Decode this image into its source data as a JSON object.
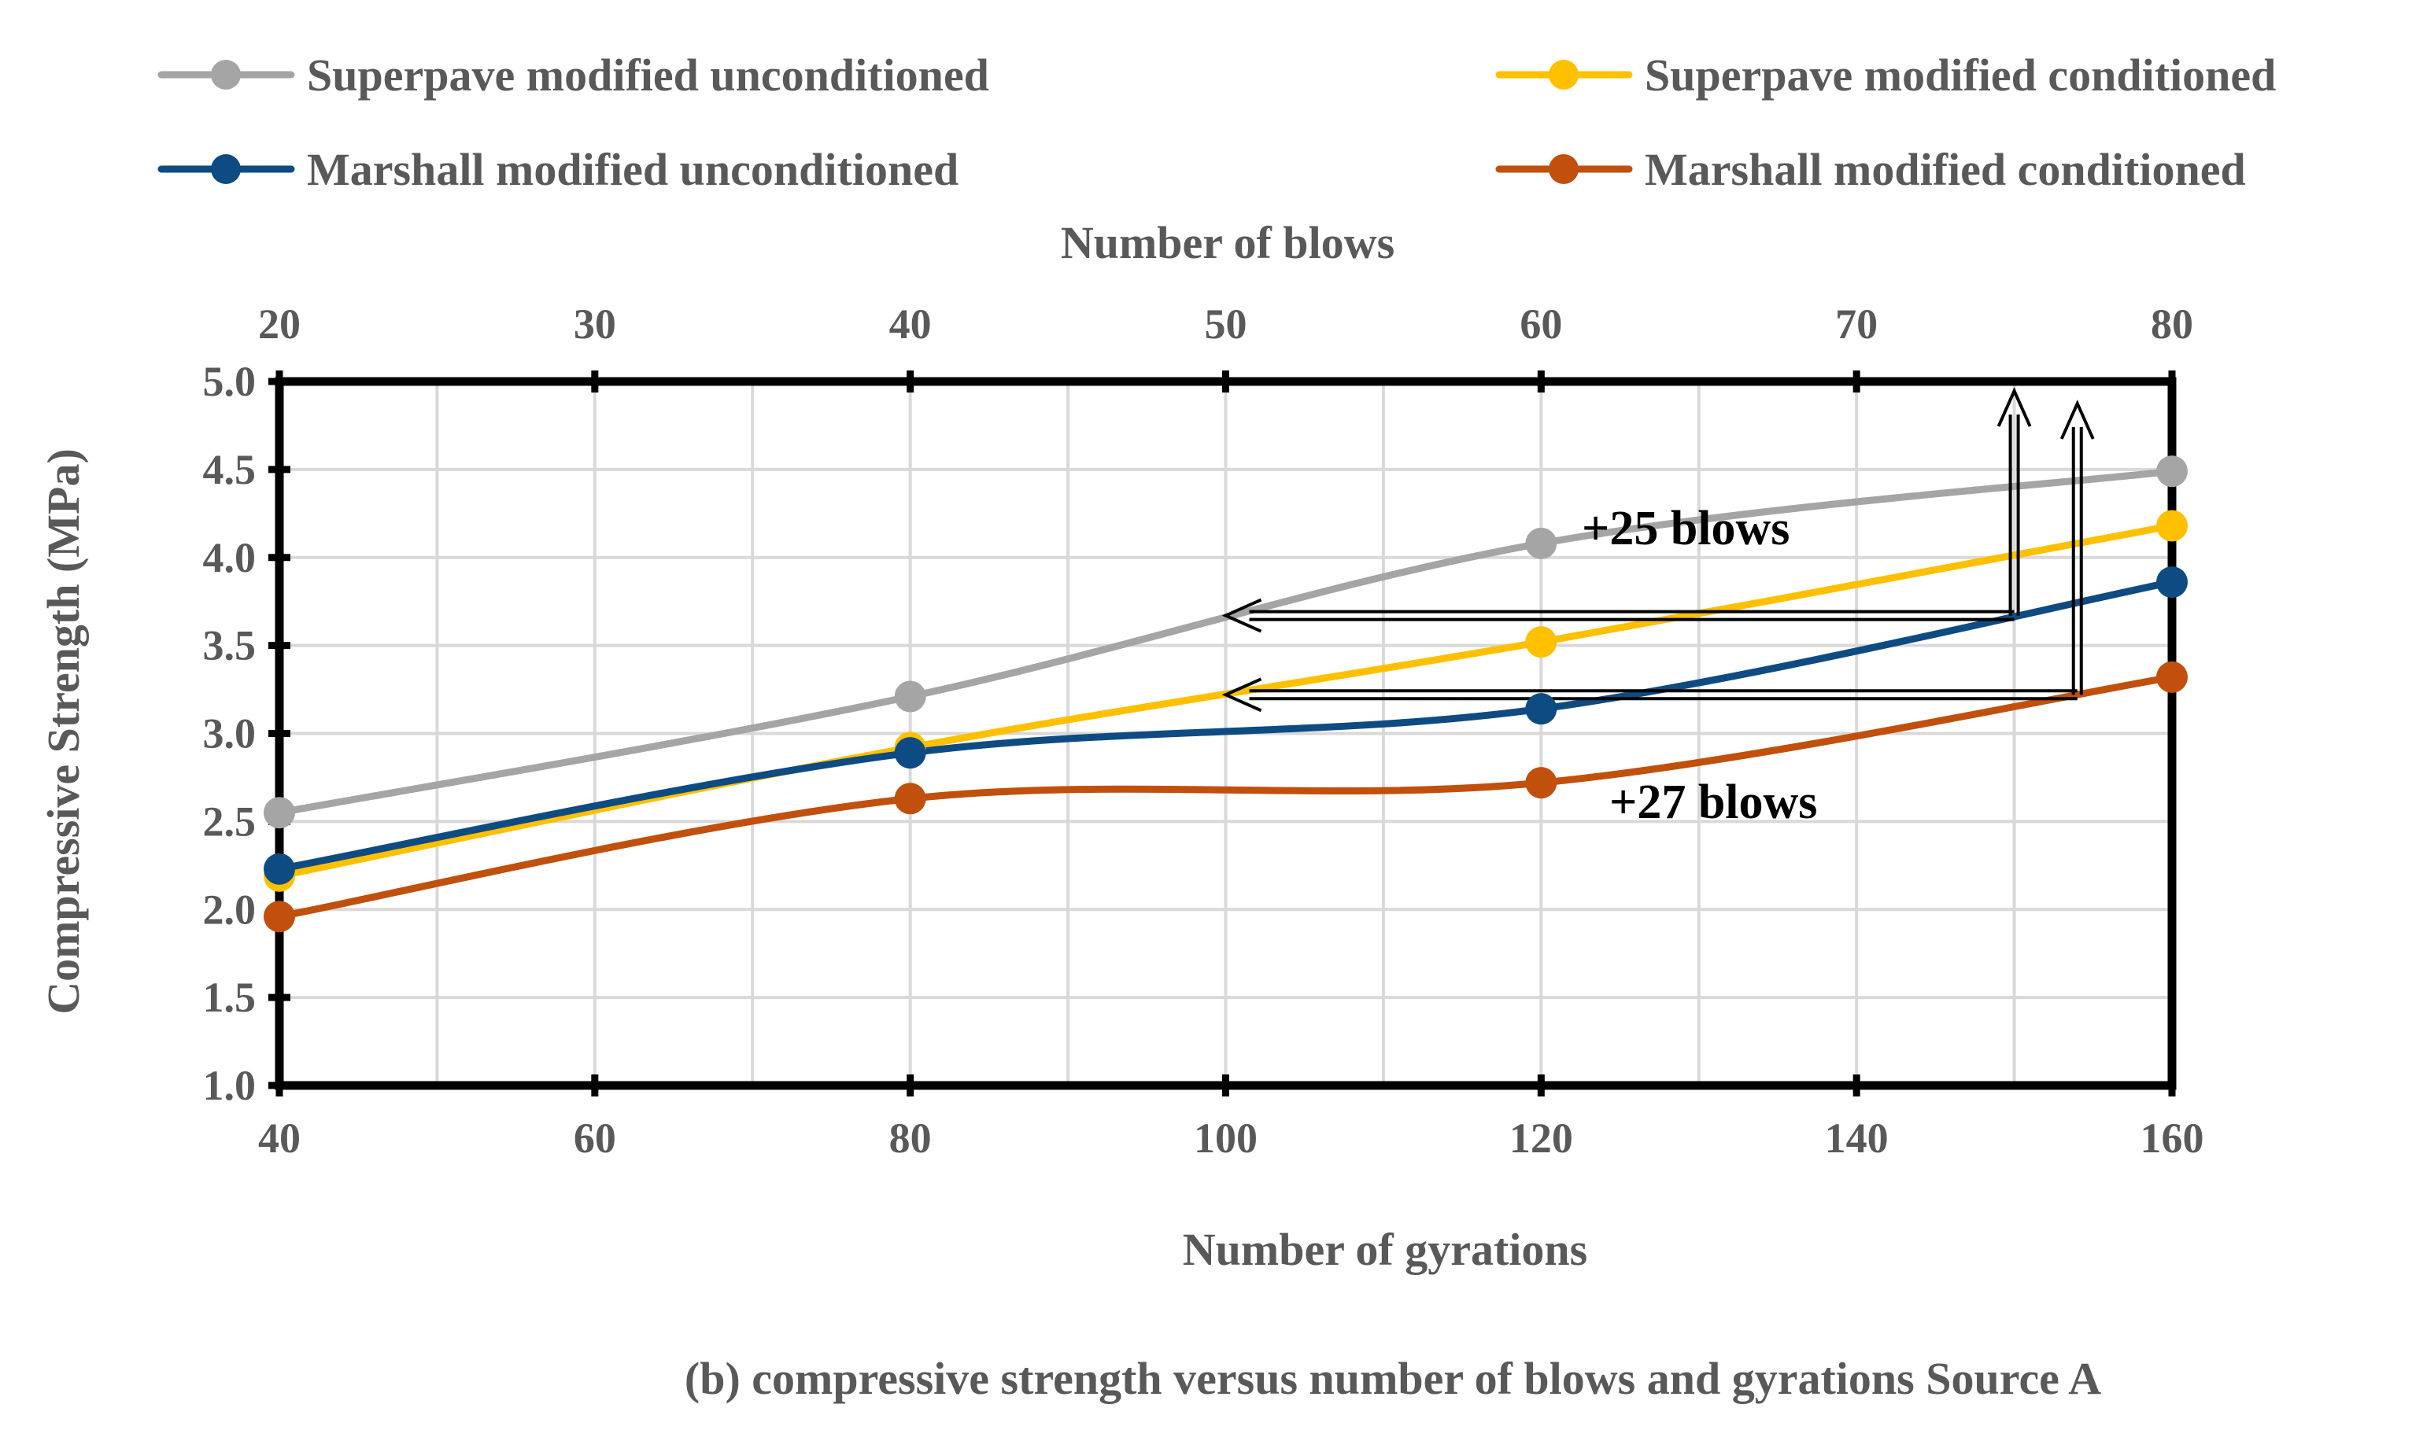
{
  "chart_data": {
    "type": "line",
    "title": "",
    "caption": "(b) compressive strength versus number of blows and gyrations Source A",
    "xlabel": "Number of gyrations",
    "x2label": "Number of blows",
    "ylabel": "Compressive Strength (MPa)",
    "xlim": [
      40,
      160
    ],
    "x2lim": [
      20,
      80
    ],
    "ylim": [
      1.0,
      5.0
    ],
    "xticks": [
      "40",
      "60",
      "80",
      "100",
      "120",
      "140",
      "160"
    ],
    "x2ticks": [
      "20",
      "30",
      "40",
      "50",
      "60",
      "70",
      "80"
    ],
    "yticks": [
      "1.0",
      "1.5",
      "2.0",
      "2.5",
      "3.0",
      "3.5",
      "4.0",
      "4.5",
      "5.0"
    ],
    "grid": true,
    "legend_position": "top",
    "series": [
      {
        "name": "Superpave modified unconditioned",
        "axis": "gyrations",
        "color": "#A5A5A5",
        "x": [
          40,
          80,
          120,
          160
        ],
        "y": [
          2.55,
          3.21,
          4.08,
          4.49
        ]
      },
      {
        "name": "Superpave modified conditioned",
        "axis": "gyrations",
        "color": "#FFC000",
        "x": [
          40,
          80,
          120,
          160
        ],
        "y": [
          2.19,
          2.92,
          3.52,
          4.18
        ]
      },
      {
        "name": "Marshall modified unconditioned",
        "axis": "blows",
        "color": "#0E4B82",
        "x": [
          20,
          40,
          60,
          80
        ],
        "y": [
          2.23,
          2.89,
          3.14,
          3.86
        ]
      },
      {
        "name": "Marshall modified conditioned",
        "axis": "blows",
        "color": "#C0500C",
        "x": [
          20,
          40,
          60,
          80
        ],
        "y": [
          1.96,
          2.63,
          2.72,
          3.32
        ]
      }
    ],
    "annotations": [
      {
        "text": "+25 blows",
        "x_blows": 50,
        "x_blows_end": 75,
        "y": 3.67
      },
      {
        "text": "+27 blows",
        "x_blows": 50,
        "x_blows_end": 77,
        "y": 3.22
      }
    ]
  }
}
